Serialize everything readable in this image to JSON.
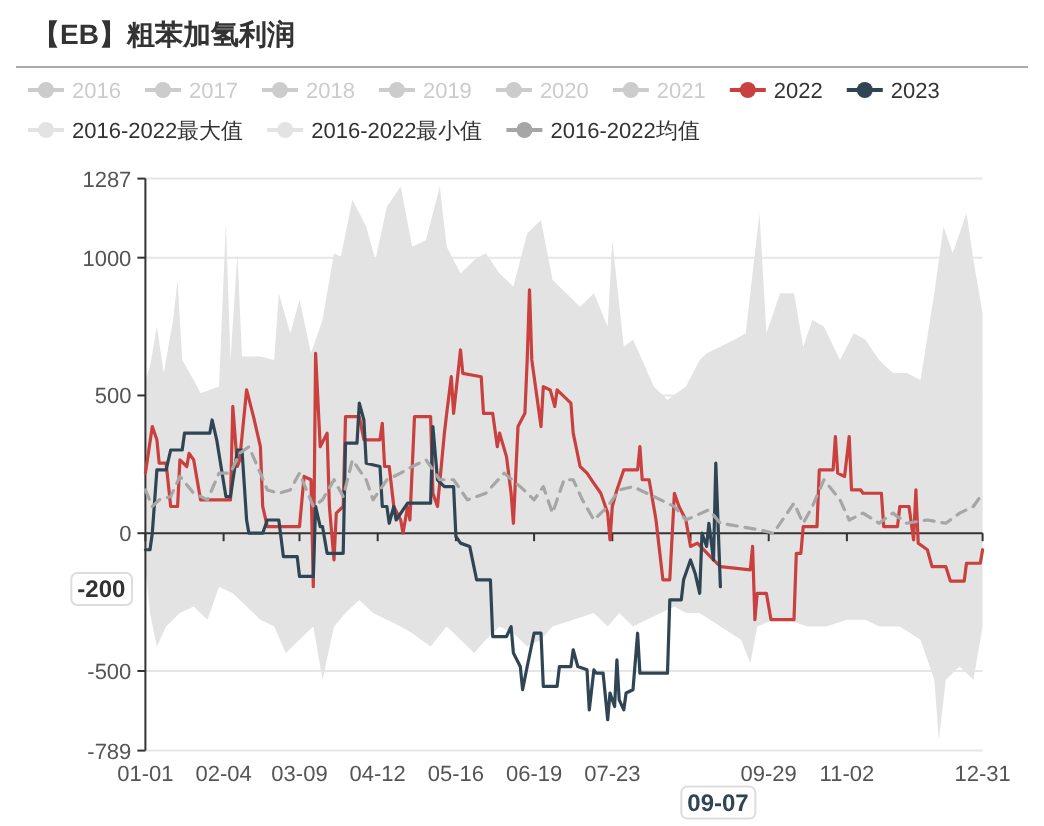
{
  "chart_data": {
    "type": "line",
    "title": "【EB】粗苯加氢利润",
    "legend": "top",
    "grid": "y",
    "xlim": [
      "--01-01",
      "--12-31"
    ],
    "xticks": [
      {
        "value": "--01-01",
        "label": "01-01"
      },
      {
        "value": "--02-04",
        "label": "02-04"
      },
      {
        "value": "--03-09",
        "label": "03-09"
      },
      {
        "value": "--04-12",
        "label": "04-12"
      },
      {
        "value": "--05-16",
        "label": "05-16"
      },
      {
        "value": "--06-19",
        "label": "06-19"
      },
      {
        "value": "--07-23",
        "label": "07-23"
      },
      {
        "value": "--08-26",
        "label": null
      },
      {
        "value": "--09-29",
        "label": "09-29"
      },
      {
        "value": "--11-02",
        "label": "11-02"
      },
      {
        "value": "--12-31",
        "label": "12-31"
      }
    ],
    "ylim": [
      -789,
      1287
    ],
    "yticks": [
      -789,
      -500,
      0,
      500,
      1000,
      1287
    ],
    "annotations": [
      "-200",
      "09-07"
    ],
    "series": [
      {
        "name": "2016",
        "color": "#cccccc"
      },
      {
        "name": "2017",
        "color": "#cccccc"
      },
      {
        "name": "2018",
        "color": "#cccccc"
      },
      {
        "name": "2019",
        "color": "#cccccc"
      },
      {
        "name": "2020",
        "color": "#cccccc"
      },
      {
        "name": "2021",
        "color": "#cccccc"
      },
      {
        "name": "2022",
        "color": "#c9403f",
        "x": [
          "--01-01",
          "--01-04",
          "--01-06",
          "--01-07",
          "--01-10",
          "--01-12",
          "--01-15",
          "--01-16",
          "--01-19",
          "--01-20",
          "--01-22",
          "--01-25",
          "--02-07",
          "--02-08",
          "--02-10",
          "--02-11",
          "--02-14",
          "--02-17",
          "--02-20",
          "--02-21",
          "--02-23",
          "--03-09",
          "--03-11",
          "--03-14",
          "--03-15",
          "--03-16",
          "--03-18",
          "--03-21",
          "--03-22",
          "--03-24",
          "--03-25",
          "--03-28",
          "--03-29",
          "--04-04",
          "--04-06",
          "--04-13",
          "--04-14",
          "--04-15",
          "--04-17",
          "--04-19",
          "--04-22",
          "--04-23",
          "--04-25",
          "--04-26",
          "--04-28",
          "--05-05",
          "--05-06",
          "--05-08",
          "--05-11",
          "--05-12",
          "--05-14",
          "--05-15",
          "--05-18",
          "--05-19",
          "--05-27",
          "--05-28",
          "--06-01",
          "--06-03",
          "--06-04",
          "--06-07",
          "--06-09",
          "--06-10",
          "--06-12",
          "--06-15",
          "--06-16",
          "--06-17",
          "--06-18",
          "--06-20",
          "--06-22",
          "--06-23",
          "--06-26",
          "--06-28",
          "--06-29",
          "--07-05",
          "--07-06",
          "--07-09",
          "--07-12",
          "--07-15",
          "--07-18",
          "--07-21",
          "--07-22",
          "--07-23",
          "--07-25",
          "--07-28",
          "--08-03",
          "--08-04",
          "--08-05",
          "--08-08",
          "--08-10",
          "--08-11",
          "--08-14",
          "--08-17",
          "--08-19",
          "--08-21",
          "--08-24",
          "--08-26",
          "--08-29",
          "--09-05",
          "--09-08",
          "--09-21",
          "--09-22",
          "--09-23",
          "--09-24",
          "--09-28",
          "--09-30",
          "--10-10",
          "--10-11",
          "--10-13",
          "--10-14",
          "--10-20",
          "--10-21",
          "--10-27",
          "--10-28",
          "--10-29",
          "--11-01",
          "--11-03",
          "--11-04",
          "--11-08",
          "--11-09",
          "--11-17",
          "--11-18",
          "--11-24",
          "--11-25",
          "--11-29",
          "--12-01",
          "--12-02",
          "--12-03",
          "--12-07",
          "--12-09",
          "--12-15",
          "--12-17",
          "--12-23",
          "--12-24",
          "--12-30",
          "--12-31"
        ],
        "values": [
          218,
          387,
          339,
          254,
          254,
          97,
          97,
          266,
          242,
          290,
          266,
          121,
          121,
          460,
          242,
          266,
          520,
          423,
          314,
          97,
          24,
          24,
          206,
          194,
          -194,
          653,
          314,
          363,
          97,
          -97,
          73,
          97,
          423,
          423,
          339,
          339,
          399,
          242,
          242,
          97,
          48,
          0,
          97,
          48,
          423,
          423,
          145,
          97,
          363,
          435,
          568,
          435,
          665,
          580,
          568,
          435,
          435,
          314,
          363,
          278,
          145,
          36,
          387,
          435,
          629,
          883,
          629,
          508,
          387,
          532,
          520,
          460,
          520,
          472,
          363,
          242,
          218,
          181,
          145,
          73,
          -24,
          97,
          157,
          230,
          230,
          314,
          194,
          194,
          97,
          48,
          -169,
          -169,
          145,
          97,
          48,
          -48,
          -36,
          -97,
          -121,
          -133,
          -48,
          -314,
          -218,
          -218,
          -314,
          -314,
          -73,
          -73,
          24,
          24,
          230,
          230,
          351,
          218,
          206,
          351,
          157,
          157,
          145,
          145,
          24,
          24,
          97,
          97,
          -24,
          157,
          -36,
          -60,
          -121,
          -121,
          -174,
          -174,
          -109,
          -109,
          -60
        ]
      },
      {
        "name": "2023",
        "color": "#2f4554",
        "x": [
          "--01-01",
          "--01-03",
          "--01-04",
          "--01-06",
          "--01-10",
          "--01-12",
          "--01-17",
          "--01-18",
          "--01-29",
          "--01-30",
          "--02-01",
          "--02-05",
          "--02-07",
          "--02-10",
          "--02-12",
          "--02-14",
          "--02-15",
          "--02-21",
          "--02-23",
          "--02-28",
          "--03-02",
          "--03-08",
          "--03-09",
          "--03-15",
          "--03-16",
          "--03-18",
          "--03-19",
          "--03-21",
          "--03-28",
          "--03-29",
          "--04-03",
          "--04-04",
          "--04-06",
          "--04-07",
          "--04-13",
          "--04-14",
          "--04-16",
          "--04-17",
          "--04-19",
          "--04-20",
          "--04-25",
          "--05-05",
          "--05-06",
          "--05-08",
          "--05-11",
          "--05-15",
          "--05-16",
          "--05-18",
          "--05-22",
          "--05-25",
          "--05-31",
          "--06-01",
          "--06-07",
          "--06-09",
          "--06-10",
          "--06-13",
          "--06-14",
          "--06-16",
          "--06-19",
          "--06-22",
          "--06-23",
          "--06-29",
          "--06-30",
          "--07-05",
          "--07-06",
          "--07-08",
          "--07-12",
          "--07-13",
          "--07-15",
          "--07-16",
          "--07-19",
          "--07-21",
          "--07-22",
          "--07-24",
          "--07-25",
          "--07-26",
          "--07-28",
          "--07-29",
          "--08-01",
          "--08-03",
          "--08-04",
          "--08-16",
          "--08-17",
          "--08-22",
          "--08-23",
          "--08-26",
          "--08-28",
          "--08-30",
          "--08-31",
          "--09-02",
          "--09-03",
          "--09-05",
          "--09-06",
          "--09-08"
        ],
        "values": [
          -60,
          -60,
          0,
          230,
          230,
          302,
          302,
          363,
          363,
          411,
          339,
          133,
          133,
          302,
          302,
          48,
          0,
          0,
          48,
          48,
          -85,
          -85,
          -157,
          -157,
          97,
          24,
          24,
          -73,
          -73,
          327,
          327,
          472,
          411,
          254,
          242,
          97,
          97,
          36,
          97,
          48,
          109,
          109,
          387,
          194,
          169,
          169,
          -12,
          -36,
          -48,
          -169,
          -169,
          -375,
          -375,
          -339,
          -435,
          -484,
          -568,
          -484,
          -363,
          -363,
          -556,
          -556,
          -484,
          -484,
          -423,
          -484,
          -496,
          -641,
          -496,
          -508,
          -508,
          -677,
          -580,
          -629,
          -460,
          -605,
          -641,
          -580,
          -568,
          -363,
          -508,
          -508,
          -242,
          -242,
          -169,
          -97,
          -145,
          -218,
          0,
          -48,
          36,
          -97,
          254,
          -194
        ]
      },
      {
        "name": "2016-2022最大值",
        "color": "#e3e3e3",
        "type": "area",
        "x": [
          "--01-01",
          "--01-03",
          "--01-06",
          "--01-09",
          "--01-13",
          "--01-15",
          "--01-17",
          "--01-22",
          "--01-25",
          "--02-02",
          "--02-05",
          "--02-07",
          "--02-10",
          "--02-12",
          "--02-20",
          "--02-26",
          "--02-28",
          "--03-05",
          "--03-09",
          "--03-14",
          "--03-19",
          "--03-24",
          "--03-27",
          "--04-01",
          "--04-07",
          "--04-11",
          "--04-16",
          "--04-22",
          "--04-27",
          "--05-03",
          "--05-09",
          "--05-12",
          "--05-18",
          "--05-24",
          "--05-29",
          "--06-04",
          "--06-10",
          "--06-16",
          "--06-22",
          "--06-27",
          "--07-03",
          "--07-09",
          "--07-15",
          "--07-21",
          "--07-23",
          "--07-28",
          "--08-01",
          "--08-05",
          "--08-10",
          "--08-16",
          "--08-24",
          "--08-30",
          "--09-02",
          "--09-08",
          "--09-14",
          "--09-19",
          "--09-25",
          "--09-28",
          "--10-04",
          "--10-10",
          "--10-14",
          "--10-18",
          "--10-23",
          "--10-30",
          "--11-05",
          "--11-10",
          "--11-16",
          "--11-22",
          "--11-28",
          "--12-04",
          "--12-10",
          "--12-14",
          "--12-18",
          "--12-24",
          "--12-27",
          "--12-31"
        ],
        "values": [
          556,
          605,
          750,
          581,
          774,
          919,
          629,
          556,
          508,
          532,
          1125,
          629,
          1016,
          641,
          641,
          629,
          871,
          726,
          847,
          653,
          774,
          1016,
          1004,
          1210,
          1113,
          992,
          1185,
          1258,
          1040,
          1064,
          1258,
          1040,
          943,
          992,
          1016,
          943,
          895,
          1089,
          1137,
          919,
          871,
          822,
          871,
          750,
          1064,
          677,
          702,
          629,
          532,
          484,
          532,
          629,
          653,
          677,
          702,
          726,
          1161,
          726,
          871,
          871,
          677,
          774,
          750,
          629,
          726,
          702,
          629,
          581,
          581,
          556,
          871,
          1113,
          1016,
          1161,
          992,
          798
        ]
      },
      {
        "name": "2016-2022最小值",
        "color": "#e3e3e3",
        "type": "area",
        "x": [
          "--01-01",
          "--01-03",
          "--01-06",
          "--01-10",
          "--01-16",
          "--01-22",
          "--01-28",
          "--02-02",
          "--02-08",
          "--02-14",
          "--02-20",
          "--02-26",
          "--03-03",
          "--03-09",
          "--03-15",
          "--03-19",
          "--03-24",
          "--03-29",
          "--04-04",
          "--04-10",
          "--04-22",
          "--04-27",
          "--05-05",
          "--05-12",
          "--05-18",
          "--05-24",
          "--05-29",
          "--06-04",
          "--06-10",
          "--06-16",
          "--06-22",
          "--06-27",
          "--07-06",
          "--07-15",
          "--07-21",
          "--07-26",
          "--08-01",
          "--08-07",
          "--08-13",
          "--08-19",
          "--08-24",
          "--08-30",
          "--09-08",
          "--09-17",
          "--09-21",
          "--09-24",
          "--10-01",
          "--10-07",
          "--10-16",
          "--10-24",
          "--11-02",
          "--11-10",
          "--11-16",
          "--11-25",
          "--12-04",
          "--12-10",
          "--12-12",
          "--12-15",
          "--12-21",
          "--12-27",
          "--12-31"
        ],
        "values": [
          -121,
          -290,
          -411,
          -339,
          -290,
          -266,
          -314,
          -194,
          -218,
          -266,
          -314,
          -339,
          -435,
          -387,
          -339,
          -532,
          -339,
          -290,
          -242,
          -290,
          -339,
          -363,
          -411,
          -339,
          -387,
          -435,
          -387,
          -339,
          -363,
          -411,
          -387,
          -339,
          -314,
          -290,
          -339,
          -290,
          -339,
          -314,
          -290,
          -266,
          -290,
          -290,
          -339,
          -387,
          -472,
          -339,
          -314,
          -314,
          -339,
          -339,
          -314,
          -314,
          -339,
          -339,
          -387,
          -532,
          -750,
          -532,
          -484,
          -532,
          -339
        ]
      },
      {
        "name": "2016-2022均值",
        "color": "#a6a6a6",
        "type": "line",
        "line_style": "dashed",
        "x": [
          "--01-01",
          "--01-04",
          "--01-07",
          "--01-12",
          "--01-16",
          "--01-22",
          "--01-28",
          "--02-02",
          "--02-07",
          "--02-11",
          "--02-15",
          "--02-20",
          "--02-23",
          "--02-28",
          "--03-05",
          "--03-09",
          "--03-15",
          "--03-19",
          "--03-24",
          "--03-28",
          "--04-01",
          "--04-07",
          "--04-10",
          "--04-16",
          "--04-22",
          "--04-27",
          "--05-03",
          "--05-09",
          "--05-15",
          "--05-21",
          "--05-29",
          "--06-06",
          "--06-13",
          "--06-19",
          "--06-23",
          "--06-27",
          "--07-02",
          "--07-06",
          "--07-10",
          "--07-15",
          "--07-21",
          "--07-26",
          "--08-01",
          "--08-07",
          "--08-13",
          "--08-19",
          "--08-24",
          "--09-03",
          "--09-08",
          "--09-17",
          "--09-25",
          "--10-01",
          "--10-10",
          "--10-14",
          "--10-18",
          "--10-23",
          "--10-30",
          "--11-03",
          "--11-09",
          "--11-16",
          "--11-22",
          "--11-28",
          "--12-07",
          "--12-15",
          "--12-21",
          "--12-27",
          "--12-31"
        ],
        "values": [
          157,
          97,
          121,
          133,
          206,
          145,
          121,
          218,
          218,
          290,
          314,
          218,
          157,
          145,
          157,
          218,
          97,
          121,
          194,
          133,
          266,
          194,
          121,
          194,
          218,
          242,
          266,
          194,
          194,
          121,
          145,
          218,
          169,
          121,
          169,
          73,
          194,
          194,
          121,
          48,
          97,
          157,
          169,
          145,
          121,
          97,
          48,
          85,
          36,
          24,
          12,
          0,
          109,
          36,
          97,
          194,
          121,
          48,
          73,
          36,
          73,
          36,
          48,
          36,
          73,
          97,
          145
        ]
      }
    ]
  }
}
